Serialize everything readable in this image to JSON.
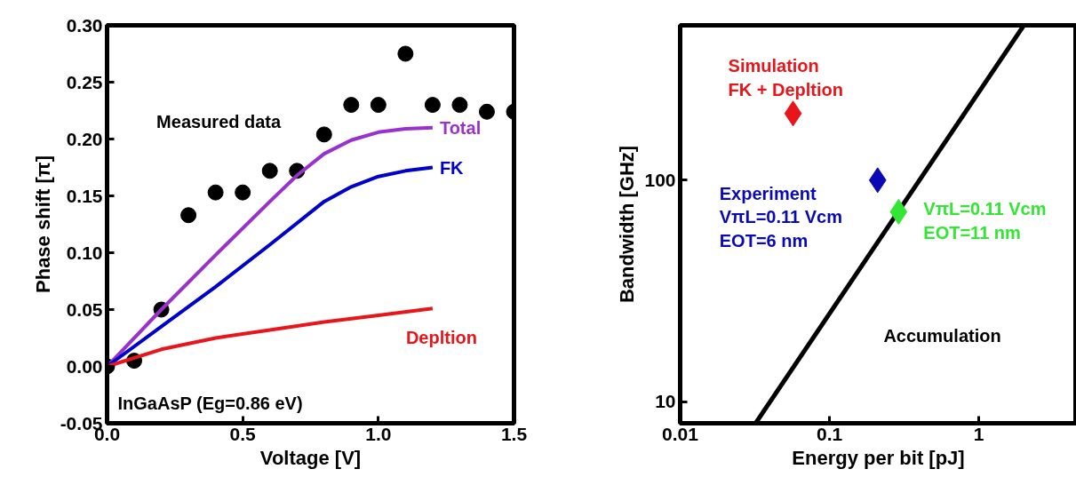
{
  "chart_data": [
    {
      "type": "line",
      "xlabel": "Voltage [V]",
      "ylabel": "Phase shift [π]",
      "xlim": [
        0,
        1.5
      ],
      "ylim": [
        -0.05,
        0.3
      ],
      "xticks": [
        {
          "value": 0,
          "label": "0.0"
        },
        {
          "value": 0.5,
          "label": "0.5"
        },
        {
          "value": 1,
          "label": "1.0"
        },
        {
          "value": 1.5,
          "label": "1.5"
        }
      ],
      "yticks": [
        {
          "value": -0.05,
          "label": "-0.05"
        },
        {
          "value": 0,
          "label": "0.00"
        },
        {
          "value": 0.05,
          "label": "0.05"
        },
        {
          "value": 0.1,
          "label": "0.10"
        },
        {
          "value": 0.15,
          "label": "0.15"
        },
        {
          "value": 0.2,
          "label": "0.20"
        },
        {
          "value": 0.25,
          "label": "0.25"
        },
        {
          "value": 0.3,
          "label": "0.30"
        }
      ],
      "grid": false,
      "annotations": [
        "InGaAsP (Eg=0.86 eV)"
      ],
      "series": [
        {
          "name": "Measured data",
          "type": "scatter",
          "marker": "circle",
          "color": "#000000",
          "x": [
            0,
            0.1,
            0.2,
            0.3,
            0.4,
            0.5,
            0.6,
            0.7,
            0.8,
            0.9,
            1.0,
            1.1,
            1.2,
            1.3,
            1.4,
            1.5
          ],
          "values": [
            0,
            0.005,
            0.05,
            0.133,
            0.153,
            0.153,
            0.172,
            0.172,
            0.204,
            0.23,
            0.23,
            0.275,
            0.23,
            0.23,
            0.224,
            0.224
          ]
        },
        {
          "name": "Total",
          "color": "#9932cc",
          "x": [
            0,
            0.2,
            0.4,
            0.6,
            0.7,
            0.8,
            0.9,
            1.0,
            1.1,
            1.2
          ],
          "values": [
            0,
            0.05,
            0.098,
            0.145,
            0.168,
            0.187,
            0.199,
            0.206,
            0.209,
            0.21
          ]
        },
        {
          "name": "FK",
          "color": "#0000cc",
          "x": [
            0,
            0.2,
            0.4,
            0.6,
            0.8,
            0.9,
            1.0,
            1.1,
            1.2
          ],
          "values": [
            0,
            0.035,
            0.07,
            0.107,
            0.145,
            0.158,
            0.167,
            0.172,
            0.175
          ]
        },
        {
          "name": "Depltion",
          "color": "#e8161b",
          "x": [
            0,
            0.2,
            0.4,
            0.6,
            0.8,
            1.0,
            1.2
          ],
          "values": [
            0,
            0.015,
            0.025,
            0.032,
            0.039,
            0.045,
            0.051
          ]
        }
      ]
    },
    {
      "type": "scatter",
      "xlabel": "Energy per bit [pJ]",
      "ylabel": "Bandwidth [GHz]",
      "log": "xy",
      "xlim": [
        0.01,
        4.5
      ],
      "ylim": [
        8,
        500
      ],
      "xticks": [
        {
          "value": 0.01,
          "label": "0.01"
        },
        {
          "value": 0.1,
          "label": "0.1"
        },
        {
          "value": 1,
          "label": "1"
        }
      ],
      "yticks": [
        {
          "value": 10,
          "label": "10"
        },
        {
          "value": 100,
          "label": "100"
        }
      ],
      "grid": false,
      "series": [
        {
          "name": "Accumulation",
          "type": "line",
          "color": "#000000",
          "x": [
            0.032,
            2.0
          ],
          "values": [
            8,
            500
          ]
        },
        {
          "name": "Simulation\nFK + Depltion",
          "marker": "diamond",
          "color": "#e8161b",
          "x": [
            0.057
          ],
          "values": [
            200
          ]
        },
        {
          "name": "Experiment\nVπL=0.11 Vcm\nEOT=6 nm",
          "marker": "diamond",
          "color": "#0a0ab4",
          "x": [
            0.21
          ],
          "values": [
            100
          ]
        },
        {
          "name": "VπL=0.11 Vcm\nEOT=11 nm",
          "marker": "diamond",
          "color": "#33e633",
          "x": [
            0.29
          ],
          "values": [
            72
          ]
        }
      ]
    }
  ]
}
